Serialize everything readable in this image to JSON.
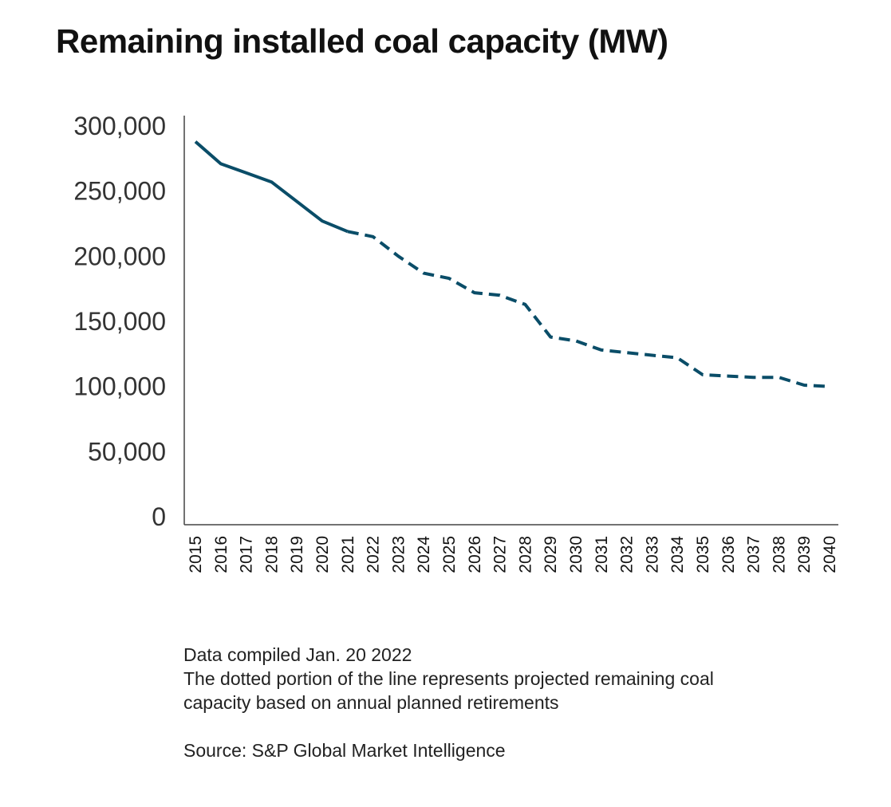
{
  "chart_data": {
    "type": "line",
    "title": "Remaining installed coal capacity (MW)",
    "xlabel": "",
    "ylabel": "",
    "ylim": [
      0,
      300000
    ],
    "yticks": [
      0,
      50000,
      100000,
      150000,
      200000,
      250000,
      300000
    ],
    "ytick_labels": [
      "0",
      "50,000",
      "100,000",
      "150,000",
      "200,000",
      "250,000",
      "300,000"
    ],
    "x": [
      "2015",
      "2016",
      "2017",
      "2018",
      "2019",
      "2020",
      "2021",
      "2022",
      "2023",
      "2024",
      "2025",
      "2026",
      "2027",
      "2028",
      "2029",
      "2030",
      "2031",
      "2032",
      "2033",
      "2034",
      "2035",
      "2036",
      "2037",
      "2038",
      "2039",
      "2040"
    ],
    "series": [
      {
        "values": [
          288000,
          271000,
          264000,
          257000,
          242000,
          227000,
          219000,
          215000,
          200000,
          187000,
          183000,
          172000,
          170000,
          163000,
          138000,
          135000,
          128000,
          126000,
          124000,
          122000,
          109000,
          108000,
          107000,
          107000,
          101000,
          100000
        ],
        "historical_through": "2021",
        "color": "#0a4d68"
      }
    ],
    "grid": false,
    "legend": "none"
  },
  "notes": {
    "compiled": "Data compiled Jan. 20 2022",
    "line1": "The dotted portion of the line represents projected remaining coal",
    "line2": "capacity based on annual planned retirements",
    "source": "Source: S&P Global Market Intelligence"
  }
}
